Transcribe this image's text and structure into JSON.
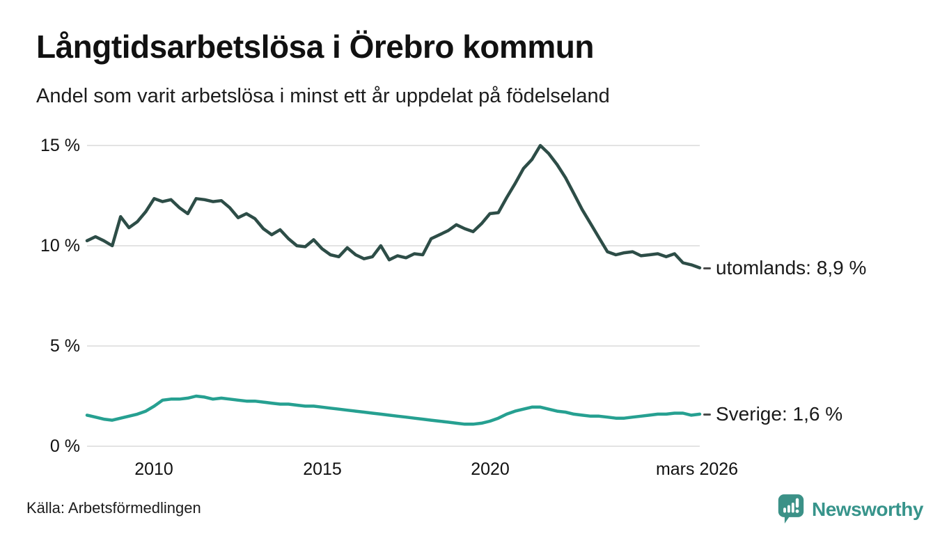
{
  "header": {
    "title": "Långtidsarbetslösa i Örebro kommun",
    "subtitle": "Andel som varit arbetslösa i minst ett år uppdelat på födelseland"
  },
  "chart_data": {
    "type": "line",
    "title": "Långtidsarbetslösa i Örebro kommun",
    "subtitle": "Andel som varit arbetslösa i minst ett år uppdelat på födelseland",
    "unit": "%",
    "x_start": 2008.0,
    "x_step": 0.25,
    "xlim": [
      2008.0,
      2026.25
    ],
    "ylim": [
      0,
      15
    ],
    "grid": "horizontal",
    "gridline_color": "#e3e3e3",
    "y_axis": {
      "ticks": [
        {
          "label": "15 %",
          "value": 15
        },
        {
          "label": "10 %",
          "value": 10
        },
        {
          "label": "5 %",
          "value": 5
        },
        {
          "label": "0 %",
          "value": 0
        }
      ]
    },
    "x_axis": {
      "ticks": [
        {
          "label": "2010",
          "year": 2010
        },
        {
          "label": "2015",
          "year": 2015
        },
        {
          "label": "2020",
          "year": 2020
        },
        {
          "label": "mars 2026",
          "year": 2026.17
        }
      ]
    },
    "series": [
      {
        "name": "utomlands",
        "label": "utomlands: 8,9 %",
        "last_value": "8,9 %",
        "color": "#2d4d47",
        "values": [
          10.25,
          10.45,
          10.25,
          10.0,
          11.45,
          10.9,
          11.2,
          11.7,
          12.35,
          12.2,
          12.3,
          11.9,
          11.6,
          12.35,
          12.3,
          12.2,
          12.25,
          11.9,
          11.4,
          11.6,
          11.35,
          10.85,
          10.55,
          10.8,
          10.35,
          10.0,
          9.95,
          10.3,
          9.85,
          9.55,
          9.45,
          9.9,
          9.55,
          9.35,
          9.45,
          10.0,
          9.3,
          9.5,
          9.4,
          9.6,
          9.55,
          10.35,
          10.55,
          10.75,
          11.05,
          10.85,
          10.7,
          11.1,
          11.6,
          11.65,
          12.4,
          13.1,
          13.85,
          14.3,
          15.0,
          14.6,
          14.05,
          13.4,
          12.6,
          11.8,
          11.1,
          10.4,
          9.7,
          9.55,
          9.65,
          9.7,
          9.5,
          9.55,
          9.6,
          9.45,
          9.6,
          9.15,
          9.05,
          8.9
        ]
      },
      {
        "name": "Sverige",
        "label": "Sverige: 1,6 %",
        "last_value": "1,6 %",
        "color": "#26a091",
        "values": [
          1.55,
          1.45,
          1.35,
          1.3,
          1.4,
          1.5,
          1.6,
          1.75,
          2.0,
          2.3,
          2.35,
          2.35,
          2.4,
          2.5,
          2.45,
          2.35,
          2.4,
          2.35,
          2.3,
          2.25,
          2.25,
          2.2,
          2.15,
          2.1,
          2.1,
          2.05,
          2.0,
          2.0,
          1.95,
          1.9,
          1.85,
          1.8,
          1.75,
          1.7,
          1.65,
          1.6,
          1.55,
          1.5,
          1.45,
          1.4,
          1.35,
          1.3,
          1.25,
          1.2,
          1.15,
          1.1,
          1.1,
          1.15,
          1.25,
          1.4,
          1.6,
          1.75,
          1.85,
          1.95,
          1.95,
          1.85,
          1.75,
          1.7,
          1.6,
          1.55,
          1.5,
          1.5,
          1.45,
          1.4,
          1.4,
          1.45,
          1.5,
          1.55,
          1.6,
          1.6,
          1.65,
          1.65,
          1.55,
          1.6
        ]
      }
    ]
  },
  "footer": {
    "source": "Källa: Arbetsförmedlingen",
    "brand_name": "Newsworthy",
    "brand_color": "#37948b"
  }
}
